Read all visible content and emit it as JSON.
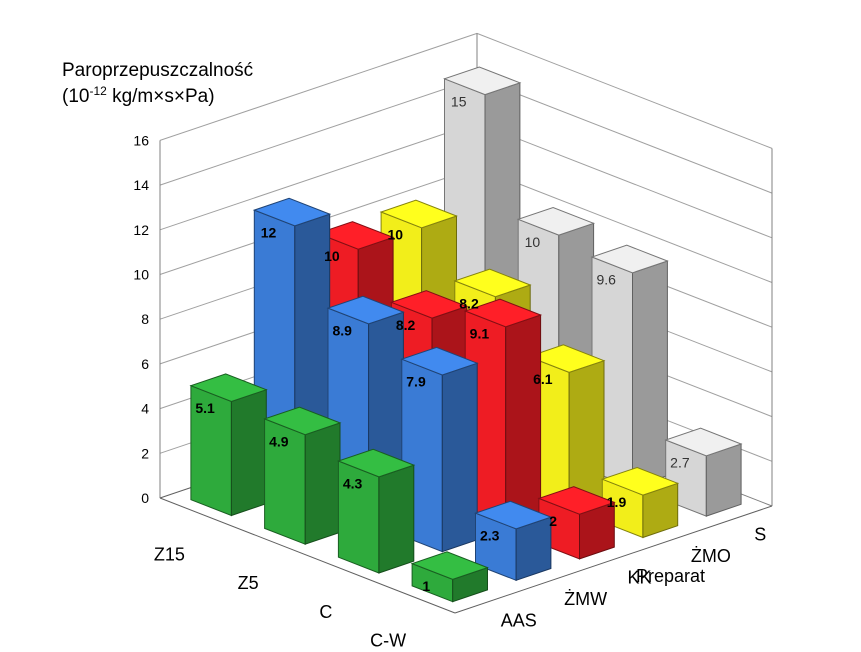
{
  "chart_data": {
    "type": "bar3d",
    "title_line1": "Paroprzepuszczalność",
    "title_line2_pre": "(10",
    "title_line2_sup": "-12",
    "title_line2_post": " kg/m×s×Pa)",
    "depth_axis_label": "Preparat",
    "categories": [
      "Z15",
      "Z5",
      "C",
      "C-W"
    ],
    "series": [
      {
        "name": "AAS",
        "color": "#2eaa3c",
        "values": [
          5.1,
          4.9,
          4.3,
          1.0
        ],
        "labels": [
          "5.1",
          "4.9",
          "4.3",
          "1"
        ]
      },
      {
        "name": "ŻMW",
        "color": "#3a7bd5",
        "values": [
          12.0,
          8.9,
          7.9,
          2.3
        ],
        "labels": [
          "12",
          "8.9",
          "7.9",
          "2.3"
        ]
      },
      {
        "name": "KK",
        "color": "#ee1c24",
        "values": [
          10.0,
          8.2,
          9.1,
          2.0
        ],
        "labels": [
          "10",
          "8.2",
          "9.1",
          "2"
        ]
      },
      {
        "name": "ŻMO",
        "color": "#f2ee1a",
        "values": [
          10.0,
          8.2,
          6.1,
          1.9
        ],
        "labels": [
          "10",
          "8.2",
          "6.1",
          "1.9"
        ]
      },
      {
        "name": "S",
        "color": "#d6d6d6",
        "values": [
          15.0,
          10.0,
          9.6,
          2.7
        ],
        "labels": [
          "15",
          "10",
          "9.6",
          "2.7"
        ]
      }
    ],
    "yticks": [
      "0",
      "2",
      "4",
      "6",
      "8",
      "10",
      "12",
      "14",
      "16"
    ],
    "ylim": [
      0,
      16
    ],
    "grid": true
  }
}
